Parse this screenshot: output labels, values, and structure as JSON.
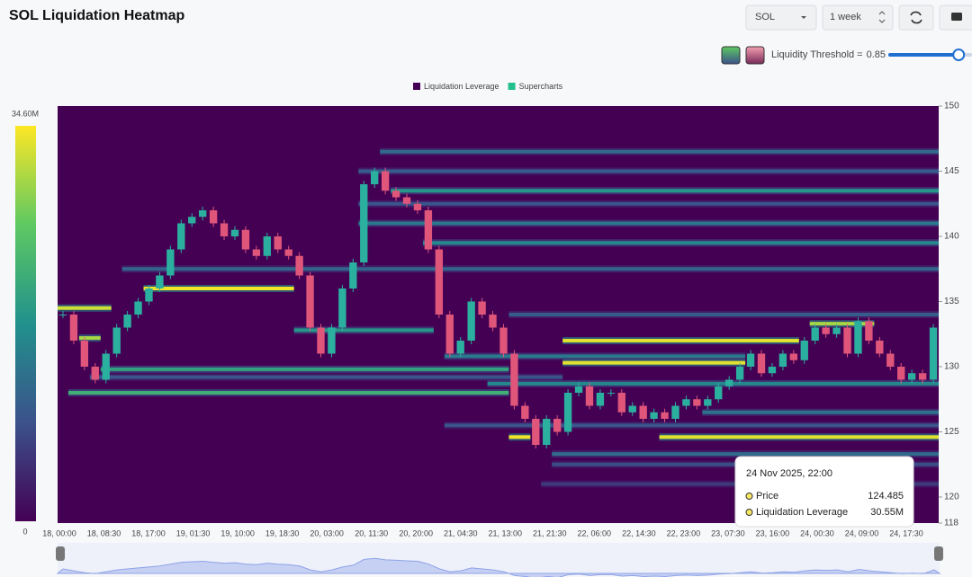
{
  "header": {
    "title": "SOL Liquidation Heatmap",
    "symbol": "SOL",
    "period": "1 week",
    "threshold": {
      "label": "Liquidity Threshold =",
      "value": 0.85
    }
  },
  "chart_data": {
    "type": "heatmap",
    "legend": [
      {
        "name": "Liquidation Leverage",
        "color": "#440154"
      },
      {
        "name": "Supercharts",
        "color": "#22c08a"
      }
    ],
    "categories": [
      "18, 00:00",
      "18, 08:30",
      "18, 17:00",
      "19, 01:30",
      "19, 10:00",
      "19, 18:30",
      "20, 03:00",
      "20, 11:30",
      "20, 20:00",
      "21, 04:30",
      "21, 13:00",
      "21, 21:30",
      "22, 06:00",
      "22, 14:30",
      "22, 23:00",
      "23, 07:30",
      "23, 16:00",
      "24, 00:30",
      "24, 09:00",
      "24, 17:30"
    ],
    "ylim": [
      118,
      150
    ],
    "yticks": [
      150,
      145,
      140,
      135,
      130,
      125,
      120,
      118
    ],
    "clim": [
      0,
      34.6
    ],
    "cticks": [
      0,
      {
        "value": 34.6,
        "label": "34.60M"
      }
    ],
    "close": [
      134,
      132,
      130,
      129,
      131,
      133,
      134,
      135,
      136,
      137,
      139,
      141,
      141.5,
      142,
      141,
      140,
      140.5,
      139,
      138.5,
      140,
      139,
      138.5,
      137,
      133,
      131,
      133,
      136,
      138,
      144,
      145,
      143.5,
      143,
      142.5,
      142,
      139,
      134,
      131,
      132,
      135,
      134,
      133,
      131,
      127,
      126,
      124,
      126,
      125,
      128,
      128.5,
      127,
      128,
      128,
      126.5,
      127,
      126,
      126.5,
      126,
      127,
      127.5,
      127,
      127.5,
      128.5,
      129,
      130,
      131,
      129.5,
      130,
      131,
      130.5,
      132,
      133,
      132.5,
      133,
      131,
      133.5,
      132,
      131,
      130,
      129,
      129.5,
      129,
      133
    ],
    "levels": [
      {
        "price": 146.5,
        "start": 30,
        "end": 82,
        "value": 12
      },
      {
        "price": 145,
        "start": 28,
        "end": 82,
        "value": 10
      },
      {
        "price": 143.5,
        "start": 31,
        "end": 82,
        "value": 18
      },
      {
        "price": 142.5,
        "start": 28,
        "end": 82,
        "value": 9
      },
      {
        "price": 141,
        "start": 28,
        "end": 82,
        "value": 14
      },
      {
        "price": 139.5,
        "start": 34,
        "end": 82,
        "value": 16
      },
      {
        "price": 137.5,
        "start": 6,
        "end": 82,
        "value": 11
      },
      {
        "price": 136,
        "start": 8,
        "end": 22,
        "value": 34
      },
      {
        "price": 134.5,
        "start": 0,
        "end": 5,
        "value": 32
      },
      {
        "price": 134,
        "start": 42,
        "end": 82,
        "value": 10
      },
      {
        "price": 133.3,
        "start": 70,
        "end": 76,
        "value": 30
      },
      {
        "price": 132.8,
        "start": 22,
        "end": 35,
        "value": 18
      },
      {
        "price": 132.2,
        "start": 2,
        "end": 4,
        "value": 30
      },
      {
        "price": 132,
        "start": 47,
        "end": 69,
        "value": 33
      },
      {
        "price": 130.8,
        "start": 36,
        "end": 64,
        "value": 14
      },
      {
        "price": 130.3,
        "start": 47,
        "end": 64,
        "value": 33
      },
      {
        "price": 129.8,
        "start": 4,
        "end": 42,
        "value": 20
      },
      {
        "price": 129.2,
        "start": 3,
        "end": 47,
        "value": 9
      },
      {
        "price": 128.7,
        "start": 40,
        "end": 82,
        "value": 16
      },
      {
        "price": 128,
        "start": 1,
        "end": 42,
        "value": 22
      },
      {
        "price": 126.5,
        "start": 60,
        "end": 82,
        "value": 13
      },
      {
        "price": 125.5,
        "start": 36,
        "end": 82,
        "value": 9
      },
      {
        "price": 124.6,
        "start": 56,
        "end": 82,
        "value": 33
      },
      {
        "price": 124.6,
        "start": 42,
        "end": 44,
        "value": 34
      },
      {
        "price": 123.3,
        "start": 46,
        "end": 82,
        "value": 12
      },
      {
        "price": 122.5,
        "start": 46,
        "end": 82,
        "value": 8
      },
      {
        "price": 121,
        "start": 45,
        "end": 82,
        "value": 6
      }
    ],
    "tooltip": {
      "title": "24 Nov 2025, 22:00",
      "rows": [
        {
          "label": "Price",
          "value": "124.485"
        },
        {
          "label": "Liquidation Leverage",
          "value": "30.55M"
        }
      ]
    }
  }
}
